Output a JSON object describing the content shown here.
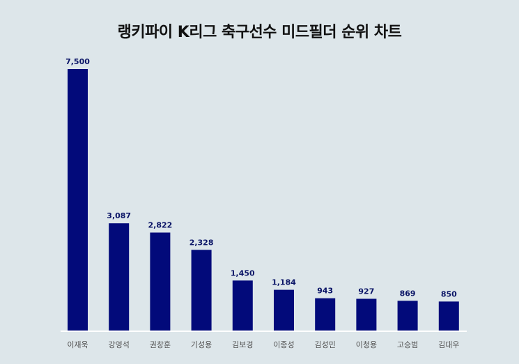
{
  "chart_data": {
    "type": "bar",
    "title": "랭키파이 K리그 축구선수 미드필더 순위 차트",
    "categories": [
      "이재욱",
      "강영석",
      "권창훈",
      "기성용",
      "김보경",
      "이종성",
      "김성민",
      "이청용",
      "고승범",
      "김대우"
    ],
    "values": [
      7500,
      3087,
      2822,
      2328,
      1450,
      1184,
      943,
      927,
      869,
      850
    ],
    "value_labels": [
      "7,500",
      "3,087",
      "2,822",
      "2,328",
      "1,450",
      "1,184",
      "943",
      "927",
      "869",
      "850"
    ],
    "xlabel": "",
    "ylabel": "",
    "ylim": [
      0,
      7500
    ],
    "grid": false,
    "legend": "none",
    "colors": {
      "bar": "#020a7a",
      "value_label": "#0a1466",
      "background": "#dde6ea",
      "axis": "#ffffff"
    }
  }
}
